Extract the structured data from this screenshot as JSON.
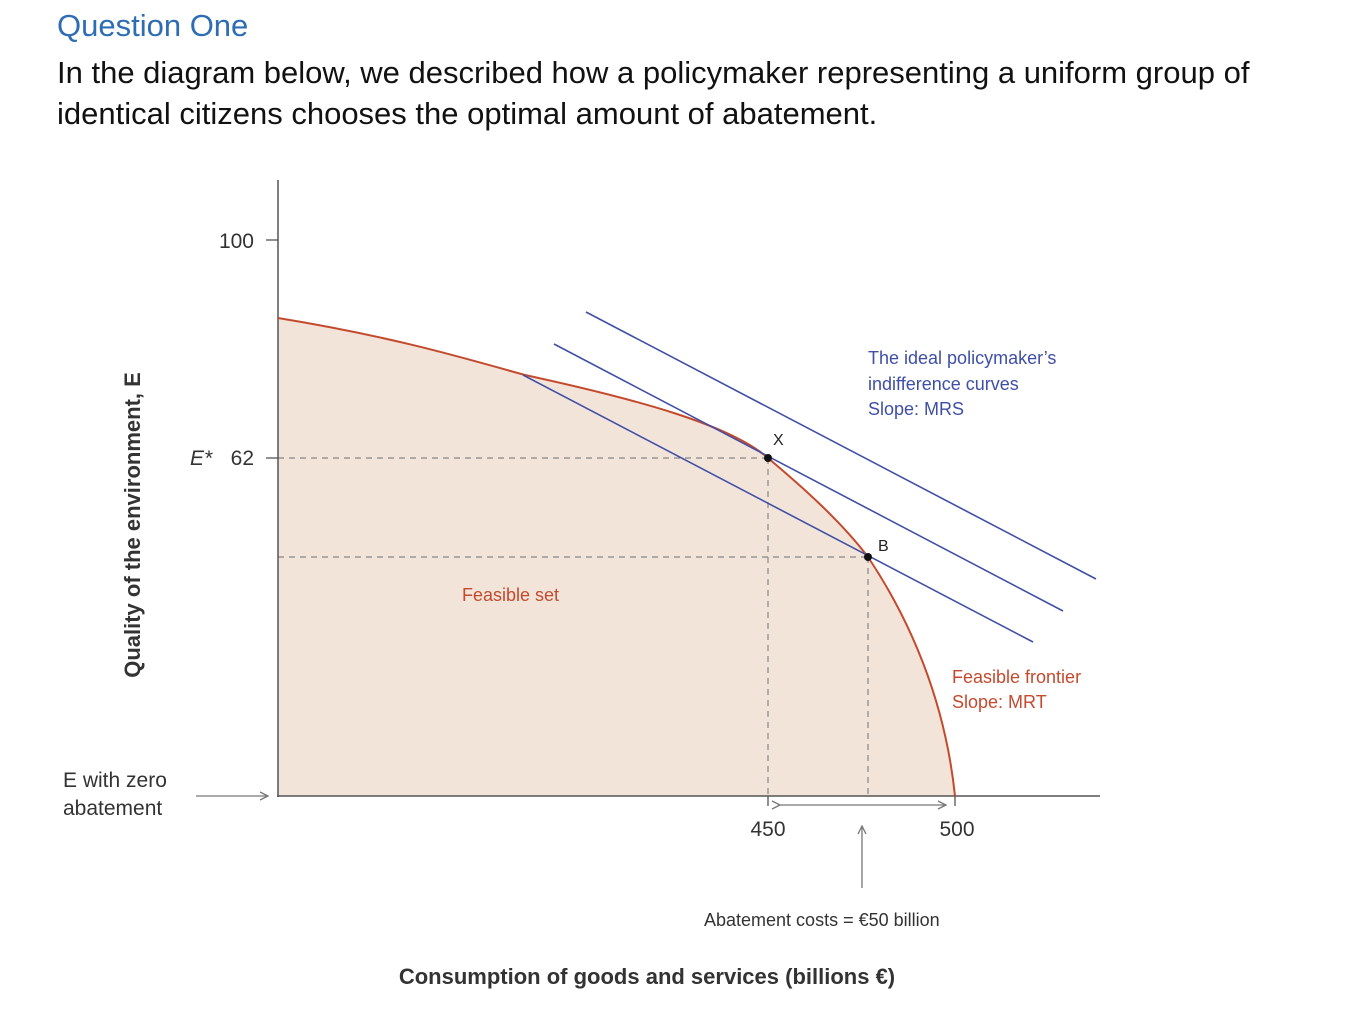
{
  "question": {
    "heading": "Question One",
    "intro": "In the diagram below, we described how a policymaker representing a uniform group of identical citizens chooses the optimal amount of abatement."
  },
  "diagram": {
    "y_axis_label": "Quality of the environment, E",
    "x_axis_label": "Consumption of goods and services (billions €)",
    "y_tick_100": "100",
    "y_tick_estar": "E*",
    "y_tick_62": "62",
    "x_tick_450": "450",
    "x_tick_500": "500",
    "zero_abatement_line1": "E with zero",
    "zero_abatement_line2": "abatement",
    "point_x": "X",
    "point_b": "B",
    "feasible_set": "Feasible set",
    "indifference_line1": "The ideal policymaker’s",
    "indifference_line2": "indifference curves",
    "indifference_line3": "Slope: MRS",
    "frontier_line1": "Feasible frontier",
    "frontier_line2": "Slope: MRT",
    "abatement_costs": "Abatement costs = €50 billion",
    "colors": {
      "frontier": "#c44a2e",
      "feasible_fill": "#f3e4da",
      "indifference": "#3f4fa6",
      "axis": "#555555"
    }
  }
}
